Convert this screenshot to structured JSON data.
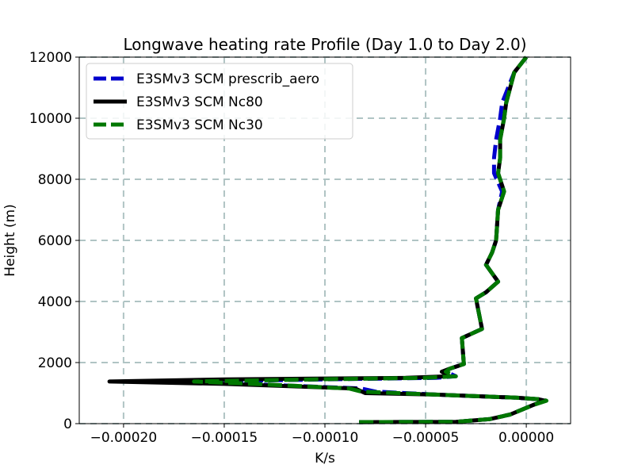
{
  "chart_data": {
    "type": "line",
    "title": "Longwave heating rate Profile (Day 1.0 to Day 2.0)",
    "xlabel": "K/s",
    "ylabel": "Height (m)",
    "xlim": [
      -0.000222,
      2.2e-05
    ],
    "ylim": [
      0,
      12000
    ],
    "x_ticks": [
      -0.0002,
      -0.00015,
      -0.0001,
      -5e-05,
      0.0
    ],
    "x_tick_labels": [
      "−0.00020",
      "−0.00015",
      "−0.00010",
      "−0.00005",
      "0.00000"
    ],
    "y_ticks": [
      0,
      2000,
      4000,
      6000,
      8000,
      10000,
      12000
    ],
    "y_tick_labels": [
      "0",
      "2000",
      "4000",
      "6000",
      "8000",
      "10000",
      "12000"
    ],
    "grid": true,
    "legend_position": "upper-left",
    "series": [
      {
        "name": "E3SMv3 SCM prescrib_aero",
        "color": "#0000cc",
        "style": "dashed",
        "x": [
          -8.3e-05,
          -3.5e-05,
          -1.8e-05,
          -8e-06,
          3e-06,
          9e-06,
          6e-06,
          -5e-06,
          -4.5e-05,
          -7.5e-05,
          -8.2e-05,
          -0.00014,
          -0.00016,
          -0.0001,
          -4.5e-05,
          -3.5e-05,
          -4e-05,
          -3.8e-05,
          -3.1e-05,
          -3.2e-05,
          -2.2e-05,
          -2.5e-05,
          -2e-05,
          -1.4e-05,
          -2e-05,
          -1.7e-05,
          -1.5e-05,
          -1.4e-05,
          -1.2e-05,
          -1.6e-05,
          -1.6e-05,
          -1.5e-05,
          -1.3e-05,
          -1.2e-05,
          -9e-06,
          -6e-06,
          0.0
        ],
        "y": [
          50,
          60,
          150,
          300,
          600,
          750,
          800,
          850,
          950,
          1050,
          1150,
          1300,
          1380,
          1450,
          1500,
          1550,
          1700,
          1800,
          1950,
          2800,
          3100,
          4100,
          4300,
          4650,
          5200,
          5600,
          6000,
          7000,
          7600,
          8200,
          8700,
          9300,
          10000,
          10500,
          11000,
          11500,
          12000
        ]
      },
      {
        "name": "E3SMv3 SCM Nc80",
        "color": "#000000",
        "style": "solid",
        "x": [
          -8.3e-05,
          -3.5e-05,
          -1.8e-05,
          -8e-06,
          3e-06,
          9e-06,
          6e-06,
          -5e-06,
          -4.5e-05,
          -8e-05,
          -8.5e-05,
          -0.00015,
          -0.000207,
          -0.00015,
          -6e-05,
          -3.8e-05,
          -4.2e-05,
          -3.8e-05,
          -3.1e-05,
          -3.2e-05,
          -2.2e-05,
          -2.5e-05,
          -2e-05,
          -1.4e-05,
          -2e-05,
          -1.7e-05,
          -1.5e-05,
          -1.4e-05,
          -1.1e-05,
          -1.4e-05,
          -1.3e-05,
          -1.3e-05,
          -1.1e-05,
          -1e-05,
          -8e-06,
          -6e-06,
          0.0
        ],
        "y": [
          50,
          60,
          150,
          300,
          600,
          750,
          800,
          850,
          950,
          1000,
          1150,
          1300,
          1380,
          1450,
          1500,
          1550,
          1700,
          1800,
          1950,
          2800,
          3100,
          4100,
          4300,
          4650,
          5200,
          5600,
          6000,
          7000,
          7600,
          8200,
          8700,
          9300,
          10000,
          10500,
          11000,
          11500,
          12000
        ]
      },
      {
        "name": "E3SMv3 SCM Nc30",
        "color": "#007700",
        "style": "dashed",
        "x": [
          -8.3e-05,
          -3.5e-05,
          -1.8e-05,
          -8e-06,
          3e-06,
          1e-05,
          7e-06,
          -5e-06,
          -4.5e-05,
          -8.2e-05,
          -8.8e-05,
          -0.000135,
          -0.000165,
          -0.000105,
          -5e-05,
          -3.5e-05,
          -4e-05,
          -3.8e-05,
          -3.1e-05,
          -3.2e-05,
          -2.2e-05,
          -2.5e-05,
          -2e-05,
          -1.4e-05,
          -2e-05,
          -1.7e-05,
          -1.5e-05,
          -1.4e-05,
          -1.1e-05,
          -1.4e-05,
          -1.3e-05,
          -1.3e-05,
          -1.1e-05,
          -1e-05,
          -8e-06,
          -6e-06,
          0.0
        ],
        "y": [
          50,
          60,
          150,
          300,
          600,
          750,
          800,
          850,
          950,
          1050,
          1150,
          1300,
          1380,
          1450,
          1500,
          1550,
          1700,
          1800,
          1950,
          2800,
          3100,
          4100,
          4300,
          4650,
          5200,
          5600,
          6000,
          7000,
          7600,
          8200,
          8700,
          9300,
          10000,
          10500,
          11000,
          11500,
          12000
        ]
      }
    ]
  }
}
